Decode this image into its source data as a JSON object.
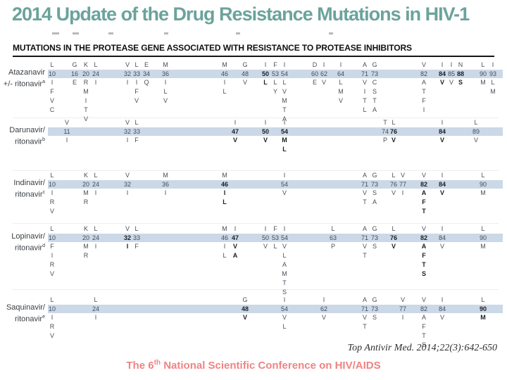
{
  "title": "2014 Update of the Drug Resistance Mutations in HIV-1",
  "section_header": "MUTATIONS IN THE PROTEASE GENE ASSOCIATED WITH RESISTANCE TO PROTEASE INHIBITORS",
  "citation": "Top Antivir Med. 2014;22(3):642-650",
  "footer": {
    "prefix": "The 6",
    "sup": "th",
    "suffix": " National Scientific Conference on HIV/AIDS"
  },
  "colors": {
    "title_teal": "#6ba39c",
    "band_blue": "#cbd8e8",
    "footer_pink": "#f08383",
    "table_text": "#4a5058",
    "bold_text": "#1c1e20"
  },
  "drugs": [
    {
      "name_line1": "Atazanavir",
      "name_line2": "+/- ritonavir",
      "footnote": "a",
      "columns": [
        {
          "codon": "10",
          "wt": "L",
          "muts": [
            "I",
            "F",
            "V",
            "C"
          ],
          "bold": false
        },
        {
          "codon": "16",
          "wt": "G",
          "muts": [
            "E"
          ],
          "bold": false
        },
        {
          "codon": "20",
          "wt": "K",
          "muts": [
            "R",
            "M",
            "I",
            "T",
            "V"
          ],
          "bold": false
        },
        {
          "codon": "24",
          "wt": "L",
          "muts": [
            "I"
          ],
          "bold": false
        },
        {
          "codon": "32",
          "wt": "V",
          "muts": [
            "I"
          ],
          "bold": false
        },
        {
          "codon": "33",
          "wt": "L",
          "muts": [
            "I",
            "F",
            "V"
          ],
          "bold": false
        },
        {
          "codon": "34",
          "wt": "E",
          "muts": [
            "Q"
          ],
          "bold": false
        },
        {
          "codon": "36",
          "wt": "M",
          "muts": [
            "I",
            "L",
            "V"
          ],
          "bold": false
        },
        {
          "codon": "46",
          "wt": "M",
          "muts": [
            "I",
            "L"
          ],
          "bold": false
        },
        {
          "codon": "48",
          "wt": "G",
          "muts": [
            "V"
          ],
          "bold": false
        },
        {
          "codon": "50",
          "wt": "I",
          "muts": [
            "L"
          ],
          "bold": true
        },
        {
          "codon": "53",
          "wt": "F",
          "muts": [
            "L",
            "Y"
          ],
          "bold": false
        },
        {
          "codon": "54",
          "wt": "I",
          "muts": [
            "L",
            "V",
            "M",
            "T",
            "A"
          ],
          "bold": false
        },
        {
          "codon": "60",
          "wt": "D",
          "muts": [
            "E"
          ],
          "bold": false
        },
        {
          "codon": "62",
          "wt": "I",
          "muts": [
            "V"
          ],
          "bold": false
        },
        {
          "codon": "64",
          "wt": "I",
          "muts": [
            "L",
            "M",
            "V"
          ],
          "bold": false
        },
        {
          "codon": "71",
          "wt": "A",
          "muts": [
            "V",
            "I",
            "T",
            "L"
          ],
          "bold": false
        },
        {
          "codon": "73",
          "wt": "G",
          "muts": [
            "C",
            "S",
            "T",
            "A"
          ],
          "bold": false
        },
        {
          "codon": "82",
          "wt": "V",
          "muts": [
            "A",
            "T",
            "F",
            "I"
          ],
          "bold": false
        },
        {
          "codon": "84",
          "wt": "I",
          "muts": [
            "V"
          ],
          "bold": true
        },
        {
          "codon": "85",
          "wt": "I",
          "muts": [
            "V"
          ],
          "bold": false
        },
        {
          "codon": "88",
          "wt": "N",
          "muts": [
            "S"
          ],
          "bold": true
        },
        {
          "codon": "90",
          "wt": "L",
          "muts": [
            "M"
          ],
          "bold": false
        },
        {
          "codon": "93",
          "wt": "I",
          "muts": [
            "L",
            "M"
          ],
          "bold": false
        }
      ]
    },
    {
      "name_line1": "Darunavir/",
      "name_line2": "ritonavir",
      "footnote": "b",
      "columns": [
        {
          "codon": "11",
          "wt": "V",
          "muts": [
            "I"
          ],
          "bold": false
        },
        {
          "codon": "32",
          "wt": "V",
          "muts": [
            "I"
          ],
          "bold": false
        },
        {
          "codon": "33",
          "wt": "L",
          "muts": [
            "F"
          ],
          "bold": false
        },
        {
          "codon": "47",
          "wt": "I",
          "muts": [
            "V"
          ],
          "bold": true
        },
        {
          "codon": "50",
          "wt": "I",
          "muts": [
            "V"
          ],
          "bold": true
        },
        {
          "codon": "54",
          "wt": "I",
          "muts": [
            "M",
            "L"
          ],
          "bold": true
        },
        {
          "codon": "74",
          "wt": "T",
          "muts": [
            "P"
          ],
          "bold": false
        },
        {
          "codon": "76",
          "wt": "L",
          "muts": [
            "V"
          ],
          "bold": true
        },
        {
          "codon": "84",
          "wt": "I",
          "muts": [
            "V"
          ],
          "bold": true
        },
        {
          "codon": "89",
          "wt": "L",
          "muts": [
            "V"
          ],
          "bold": false
        }
      ]
    },
    {
      "name_line1": "Indinavir/",
      "name_line2": "ritonavir",
      "footnote": "c",
      "columns": [
        {
          "codon": "10",
          "wt": "L",
          "muts": [
            "I",
            "R",
            "V"
          ],
          "bold": false
        },
        {
          "codon": "20",
          "wt": "K",
          "muts": [
            "M",
            "R"
          ],
          "bold": false
        },
        {
          "codon": "24",
          "wt": "L",
          "muts": [
            "I"
          ],
          "bold": false
        },
        {
          "codon": "32",
          "wt": "V",
          "muts": [
            "I"
          ],
          "bold": false
        },
        {
          "codon": "36",
          "wt": "M",
          "muts": [
            "I"
          ],
          "bold": false
        },
        {
          "codon": "46",
          "wt": "M",
          "muts": [
            "I",
            "L"
          ],
          "bold": true
        },
        {
          "codon": "54",
          "wt": "I",
          "muts": [
            "V"
          ],
          "bold": false
        },
        {
          "codon": "71",
          "wt": "A",
          "muts": [
            "V",
            "T"
          ],
          "bold": false
        },
        {
          "codon": "73",
          "wt": "G",
          "muts": [
            "S",
            "A"
          ],
          "bold": false
        },
        {
          "codon": "76",
          "wt": "L",
          "muts": [
            "V"
          ],
          "bold": false
        },
        {
          "codon": "77",
          "wt": "V",
          "muts": [
            "I"
          ],
          "bold": false
        },
        {
          "codon": "82",
          "wt": "V",
          "muts": [
            "A",
            "F",
            "T"
          ],
          "bold": true
        },
        {
          "codon": "84",
          "wt": "I",
          "muts": [
            "V"
          ],
          "bold": true
        },
        {
          "codon": "90",
          "wt": "L",
          "muts": [
            "M"
          ],
          "bold": false
        }
      ]
    },
    {
      "name_line1": "Lopinavir/",
      "name_line2": "ritonavir",
      "footnote": "d",
      "columns": [
        {
          "codon": "10",
          "wt": "L",
          "muts": [
            "F",
            "I",
            "R",
            "V"
          ],
          "bold": false
        },
        {
          "codon": "20",
          "wt": "K",
          "muts": [
            "M",
            "R"
          ],
          "bold": false
        },
        {
          "codon": "24",
          "wt": "L",
          "muts": [
            "I"
          ],
          "bold": false
        },
        {
          "codon": "32",
          "wt": "V",
          "muts": [
            "I"
          ],
          "bold": true
        },
        {
          "codon": "33",
          "wt": "L",
          "muts": [
            "F"
          ],
          "bold": false
        },
        {
          "codon": "46",
          "wt": "M",
          "muts": [
            "I",
            "L"
          ],
          "bold": false
        },
        {
          "codon": "47",
          "wt": "I",
          "muts": [
            "V",
            "A"
          ],
          "bold": true
        },
        {
          "codon": "50",
          "wt": "I",
          "muts": [
            "V"
          ],
          "bold": false
        },
        {
          "codon": "53",
          "wt": "F",
          "muts": [
            "L"
          ],
          "bold": false
        },
        {
          "codon": "54",
          "wt": "I",
          "muts": [
            "V",
            "L",
            "A",
            "M",
            "T",
            "S"
          ],
          "bold": false
        },
        {
          "codon": "63",
          "wt": "L",
          "muts": [
            "P"
          ],
          "bold": false
        },
        {
          "codon": "71",
          "wt": "A",
          "muts": [
            "V",
            "T"
          ],
          "bold": false
        },
        {
          "codon": "73",
          "wt": "G",
          "muts": [
            "S"
          ],
          "bold": false
        },
        {
          "codon": "76",
          "wt": "L",
          "muts": [
            "V"
          ],
          "bold": true
        },
        {
          "codon": "82",
          "wt": "V",
          "muts": [
            "A",
            "F",
            "T",
            "S"
          ],
          "bold": true
        },
        {
          "codon": "84",
          "wt": "I",
          "muts": [
            "V"
          ],
          "bold": false
        },
        {
          "codon": "90",
          "wt": "L",
          "muts": [
            "M"
          ],
          "bold": false
        }
      ]
    },
    {
      "name_line1": "Saquinavir/",
      "name_line2": "ritonavir",
      "footnote": "e",
      "columns": [
        {
          "codon": "10",
          "wt": "L",
          "muts": [
            "I",
            "R",
            "V"
          ],
          "bold": false
        },
        {
          "codon": "24",
          "wt": "L",
          "muts": [
            "I"
          ],
          "bold": false
        },
        {
          "codon": "48",
          "wt": "G",
          "muts": [
            "V"
          ],
          "bold": true
        },
        {
          "codon": "54",
          "wt": "I",
          "muts": [
            "V",
            "L"
          ],
          "bold": false
        },
        {
          "codon": "62",
          "wt": "I",
          "muts": [
            "V"
          ],
          "bold": false
        },
        {
          "codon": "71",
          "wt": "A",
          "muts": [
            "V",
            "T"
          ],
          "bold": false
        },
        {
          "codon": "73",
          "wt": "G",
          "muts": [
            "S"
          ],
          "bold": false
        },
        {
          "codon": "77",
          "wt": "V",
          "muts": [
            "I"
          ],
          "bold": false
        },
        {
          "codon": "82",
          "wt": "V",
          "muts": [
            "A",
            "F",
            "T",
            "S"
          ],
          "bold": false
        },
        {
          "codon": "84",
          "wt": "I",
          "muts": [
            "V"
          ],
          "bold": false
        },
        {
          "codon": "90",
          "wt": "L",
          "muts": [
            "M"
          ],
          "bold": true
        }
      ]
    }
  ]
}
